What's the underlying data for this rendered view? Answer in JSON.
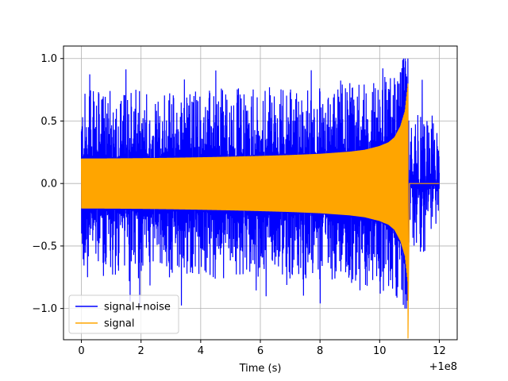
{
  "chart_data": {
    "type": "line",
    "title": "",
    "xlabel": "Time (s)",
    "ylabel": "",
    "x_offset_label": "+1e8",
    "xlim": [
      -0.6,
      12.6
    ],
    "ylim": [
      -1.25,
      1.1
    ],
    "xticks": [
      0,
      2,
      4,
      6,
      8,
      10,
      12
    ],
    "xtick_labels": [
      "0",
      "2",
      "4",
      "6",
      "8",
      "10",
      "12"
    ],
    "yticks": [
      -1.0,
      -0.5,
      0.0,
      0.5,
      1.0
    ],
    "ytick_labels": [
      "−1.0",
      "−0.5",
      "0.0",
      "0.5",
      "1.0"
    ],
    "grid": true,
    "legend_position": "lower-left",
    "series": [
      {
        "name": "signal+noise",
        "color": "#0000ff",
        "x_range": [
          0,
          12
        ],
        "description_values": {
          "typical_upper": [
            0.2,
            0.65
          ],
          "peak_max": 1.0,
          "peak_min": -1.0
        }
      },
      {
        "name": "signal",
        "color": "#ffa500",
        "envelope_x": [
          0,
          1,
          2,
          3,
          4,
          5,
          6,
          7,
          8,
          9,
          9.5,
          10,
          10.3,
          10.5,
          10.7,
          10.85,
          10.95,
          11.0
        ],
        "envelope_y": [
          0.2,
          0.201,
          0.203,
          0.206,
          0.21,
          0.215,
          0.221,
          0.228,
          0.238,
          0.255,
          0.27,
          0.3,
          0.33,
          0.37,
          0.46,
          0.58,
          0.8,
          1.0
        ],
        "merger_time": 10.95,
        "merger_min": -1.24,
        "post_merger_value": 0.0,
        "x_end": 12
      }
    ]
  }
}
